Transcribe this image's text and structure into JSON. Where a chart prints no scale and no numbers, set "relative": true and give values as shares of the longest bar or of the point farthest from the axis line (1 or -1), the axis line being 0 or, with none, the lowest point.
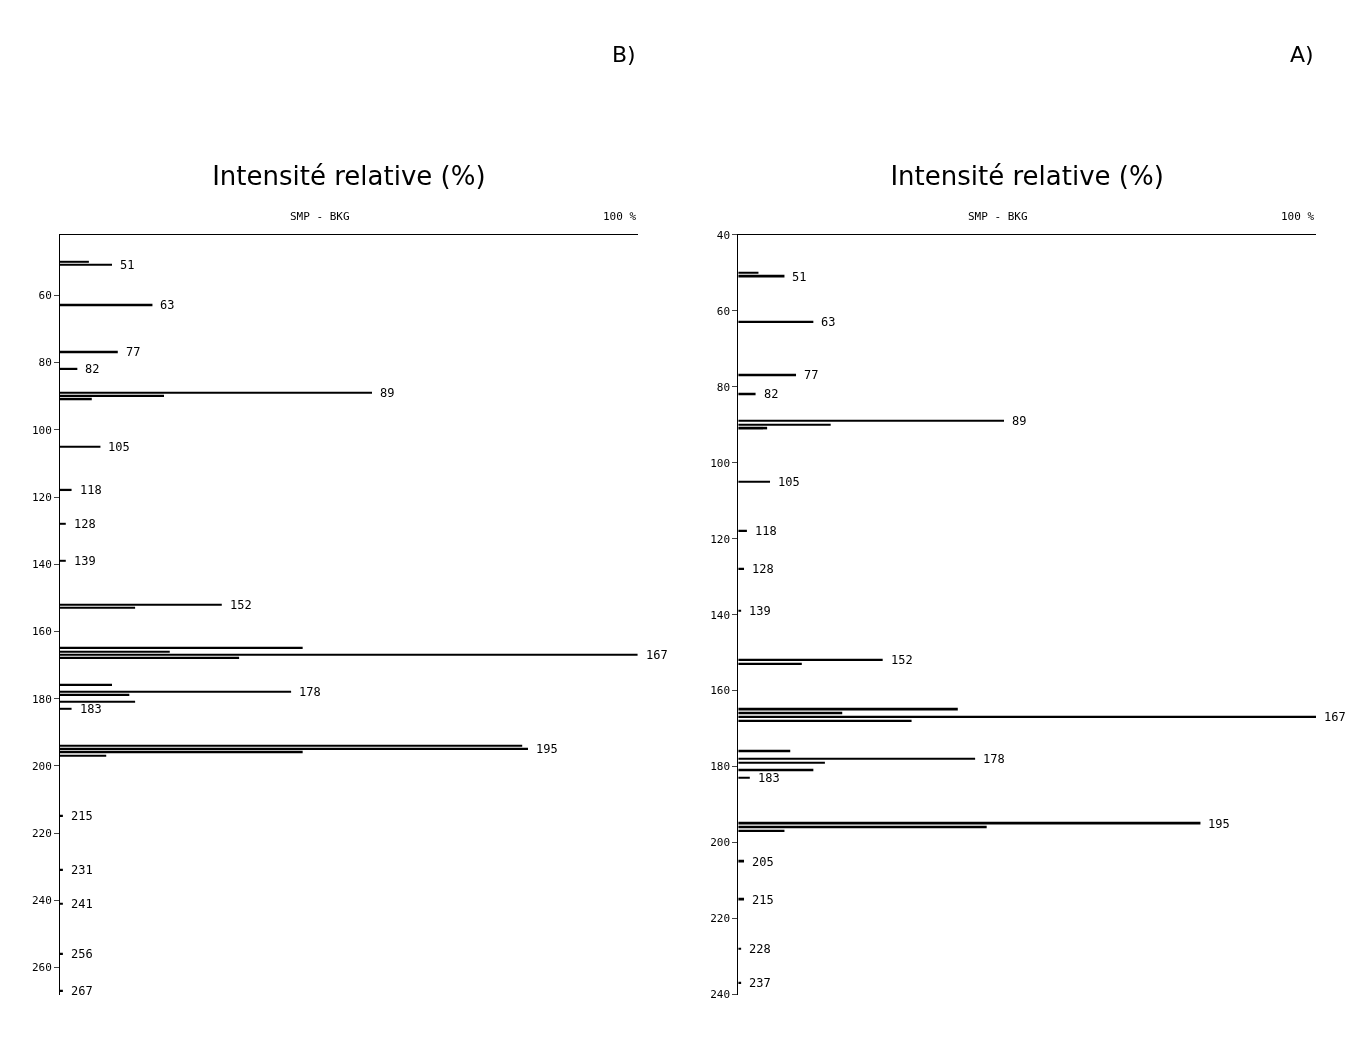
{
  "chart_data": [
    {
      "type": "bar",
      "title": "B)",
      "orientation": "horizontal",
      "relative": true,
      "xlabel": "Intensité relative (%)",
      "ylim": [
        268,
        42
      ],
      "yticks": [
        60,
        80,
        100,
        120,
        140,
        160,
        180,
        200,
        220,
        240,
        260
      ],
      "x": [
        50,
        51,
        63,
        77,
        82,
        89,
        90,
        91,
        105,
        118,
        128,
        139,
        152,
        153,
        165,
        166,
        167,
        168,
        176,
        178,
        179,
        181,
        183,
        194,
        195,
        196,
        197,
        215,
        231,
        241,
        256,
        267
      ],
      "values": [
        0.05,
        0.09,
        0.16,
        0.1,
        0.03,
        0.54,
        0.18,
        0.055,
        0.07,
        0.02,
        0.01,
        0.01,
        0.28,
        0.13,
        0.42,
        0.19,
        1.0,
        0.31,
        0.09,
        0.4,
        0.12,
        0.13,
        0.02,
        0.8,
        0.81,
        0.42,
        0.08,
        0.005,
        0.005,
        0.005,
        0.005,
        0.005
      ],
      "color": "#000000",
      "annotations": [
        "100 %",
        "SMP - BKG",
        {
          "text": "51",
          "x": 0.09,
          "y": 51
        },
        {
          "text": "63",
          "x": 0.16,
          "y": 63
        },
        {
          "text": "77",
          "x": 0.1,
          "y": 77
        },
        {
          "text": "82",
          "x": 0.03,
          "y": 82
        },
        {
          "text": "89",
          "x": 0.54,
          "y": 89
        },
        {
          "text": "105",
          "x": 0.07,
          "y": 105
        },
        {
          "text": "118",
          "x": 0.02,
          "y": 118
        },
        {
          "text": "128",
          "x": 0.01,
          "y": 128
        },
        {
          "text": "139",
          "x": 0.01,
          "y": 139
        },
        {
          "text": "152",
          "x": 0.28,
          "y": 152
        },
        {
          "text": "167",
          "x": 1.0,
          "y": 167
        },
        {
          "text": "178",
          "x": 0.4,
          "y": 178
        },
        {
          "text": "183",
          "x": 0.02,
          "y": 183
        },
        {
          "text": "195",
          "x": 0.81,
          "y": 195
        },
        {
          "text": "215",
          "x": 0.005,
          "y": 215
        },
        {
          "text": "231",
          "x": 0.005,
          "y": 231
        },
        {
          "text": "241",
          "x": 0.005,
          "y": 241
        },
        {
          "text": "256",
          "x": 0.005,
          "y": 256
        },
        {
          "text": "267",
          "x": 0.005,
          "y": 267
        }
      ]
    },
    {
      "type": "bar",
      "title": "A)",
      "orientation": "horizontal",
      "relative": true,
      "xlabel": "Intensité relative (%)",
      "ylim": [
        240,
        40
      ],
      "yticks": [
        40,
        60,
        80,
        100,
        120,
        140,
        160,
        180,
        200,
        220,
        240
      ],
      "x": [
        50,
        51,
        63,
        77,
        82,
        89,
        90,
        91,
        105,
        118,
        128,
        139,
        152,
        153,
        165,
        166,
        167,
        168,
        176,
        178,
        179,
        181,
        183,
        195,
        196,
        197,
        205,
        215,
        228,
        237
      ],
      "values": [
        0.035,
        0.08,
        0.13,
        0.1,
        0.03,
        0.46,
        0.16,
        0.05,
        0.055,
        0.015,
        0.01,
        0.005,
        0.25,
        0.11,
        0.38,
        0.18,
        1.0,
        0.3,
        0.09,
        0.41,
        0.15,
        0.13,
        0.02,
        0.8,
        0.43,
        0.08,
        0.01,
        0.01,
        0.005,
        0.005
      ],
      "color": "#000000",
      "annotations": [
        "100 %",
        "SMP - BKG",
        {
          "text": "51",
          "x": 0.08,
          "y": 51
        },
        {
          "text": "63",
          "x": 0.13,
          "y": 63
        },
        {
          "text": "77",
          "x": 0.1,
          "y": 77
        },
        {
          "text": "82",
          "x": 0.03,
          "y": 82
        },
        {
          "text": "89",
          "x": 0.46,
          "y": 89
        },
        {
          "text": "105",
          "x": 0.055,
          "y": 105
        },
        {
          "text": "118",
          "x": 0.015,
          "y": 118
        },
        {
          "text": "128",
          "x": 0.01,
          "y": 128
        },
        {
          "text": "139",
          "x": 0.005,
          "y": 139
        },
        {
          "text": "152",
          "x": 0.25,
          "y": 152
        },
        {
          "text": "167",
          "x": 1.0,
          "y": 167
        },
        {
          "text": "178",
          "x": 0.41,
          "y": 178
        },
        {
          "text": "183",
          "x": 0.02,
          "y": 183
        },
        {
          "text": "195",
          "x": 0.8,
          "y": 195
        },
        {
          "text": "205",
          "x": 0.01,
          "y": 205
        },
        {
          "text": "215",
          "x": 0.01,
          "y": 215
        },
        {
          "text": "228",
          "x": 0.005,
          "y": 228
        },
        {
          "text": "237",
          "x": 0.005,
          "y": 237
        }
      ]
    }
  ]
}
